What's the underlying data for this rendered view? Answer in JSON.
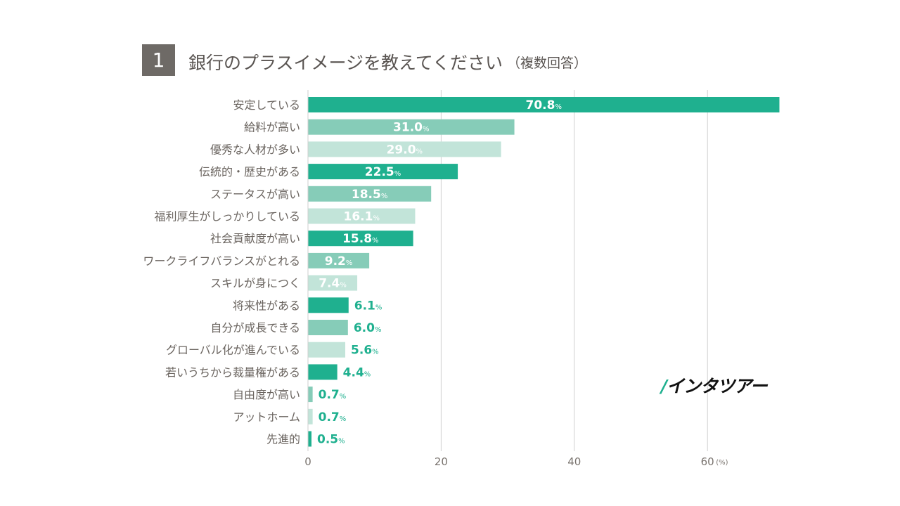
{
  "header": {
    "number": "1",
    "title": "銀行のプラスイメージを教えてください",
    "subtitle": "（複数回答）"
  },
  "brand": {
    "logo_text": "インタツアー"
  },
  "colors": {
    "dark": "#1fb08f",
    "mid": "#86ccb8",
    "light": "#c2e4d9",
    "grid": "#d0d0d0",
    "label_outside": "#1fb08f"
  },
  "chart_data": {
    "type": "bar",
    "orientation": "horizontal",
    "categories": [
      "安定している",
      "給料が高い",
      "優秀な人材が多い",
      "伝統的・歴史がある",
      "ステータスが高い",
      "福利厚生がしっかりしている",
      "社会貢献度が高い",
      "ワークライフバランスがとれる",
      "スキルが身につく",
      "将来性がある",
      "自分が成長できる",
      "グローバル化が進んでいる",
      "若いうちから裁量権がある",
      "自由度が高い",
      "アットホーム",
      "先進的"
    ],
    "values": [
      70.8,
      31.0,
      29.0,
      22.5,
      18.5,
      16.1,
      15.8,
      9.2,
      7.4,
      6.1,
      6.0,
      5.6,
      4.4,
      0.7,
      0.7,
      0.5
    ],
    "value_labels": [
      "70.8",
      "31.0",
      "29.0",
      "22.5",
      "18.5",
      "16.1",
      "15.8",
      "9.2",
      "7.4",
      "6.1",
      "6.0",
      "5.6",
      "4.4",
      "0.7",
      "0.7",
      "0.5"
    ],
    "value_unit": "%",
    "color_pattern": [
      "dark",
      "mid",
      "light"
    ],
    "xlim": [
      0,
      68
    ],
    "x_ticks": [
      0,
      20,
      40,
      60
    ],
    "x_unit_label": "(%)",
    "grid": true
  }
}
